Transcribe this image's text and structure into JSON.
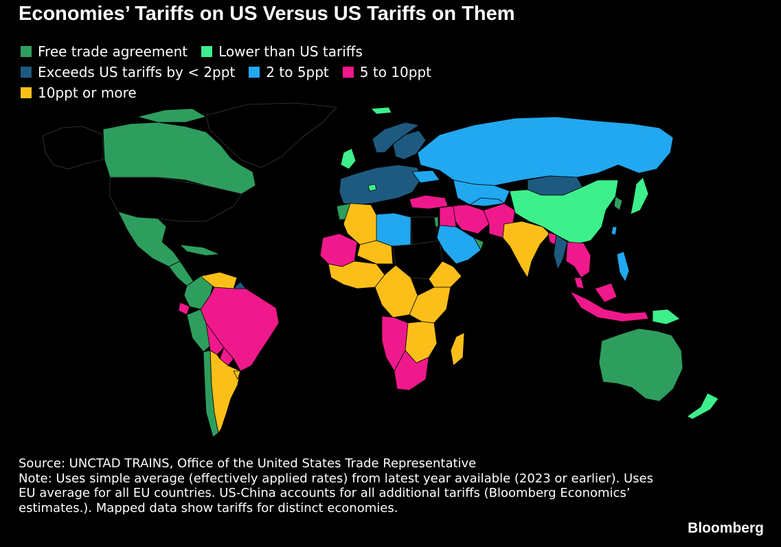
{
  "title": "Economies’ Tariffs on US Versus US Tariffs on Them",
  "legend": [
    {
      "label": "Free trade agreement",
      "color": "#2e9e5e"
    },
    {
      "label": "Lower than US tariffs",
      "color": "#3df08c"
    },
    {
      "label": "Exceeds US tariffs by < 2ppt",
      "color": "#1e5a80"
    },
    {
      "label": "2 to 5ppt",
      "color": "#21a8f0"
    },
    {
      "label": "5 to 10ppt",
      "color": "#f0198c"
    },
    {
      "label": "10ppt or more",
      "color": "#fcbf19"
    }
  ],
  "no_data_color": "#000000",
  "source": "Source: UNCTAD TRAINS, Office of the United States Trade Representative",
  "note": "Note: Uses simple average (effectively applied rates) from latest year available (2023 or earlier). Uses EU average for all EU countries. US-China accounts for all additional tariffs (Bloomberg Economics’ estimates.). Mapped data show tariffs for distinct economies.",
  "brand": "Bloomberg"
}
